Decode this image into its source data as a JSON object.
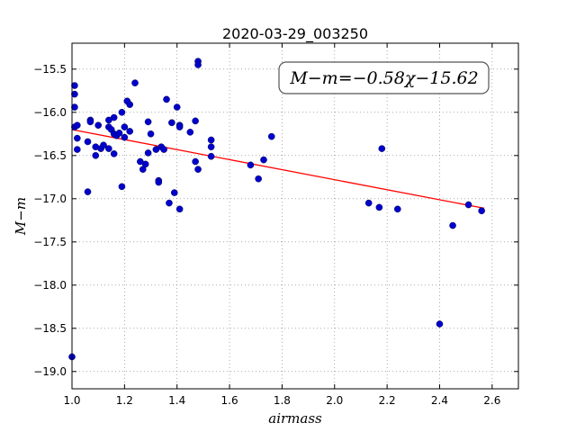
{
  "chart_data": {
    "type": "scatter",
    "title": "2020-03-29_003250",
    "xlabel": "airmass",
    "ylabel": "M−m",
    "annotation": "M−m=−0.58χ−15.62",
    "xlim": [
      1.0,
      2.7
    ],
    "ylim": [
      -19.2,
      -15.2
    ],
    "xticks": [
      1.0,
      1.2,
      1.4,
      1.6,
      1.8,
      2.0,
      2.2,
      2.4,
      2.6
    ],
    "xtick_labels": [
      "1.0",
      "1.2",
      "1.4",
      "1.6",
      "1.8",
      "2.0",
      "2.2",
      "2.4",
      "2.6"
    ],
    "yticks": [
      -15.5,
      -16.0,
      -16.5,
      -17.0,
      -17.5,
      -18.0,
      -18.5,
      -19.0
    ],
    "ytick_labels": [
      "−15.5",
      "−16.0",
      "−16.5",
      "−17.0",
      "−17.5",
      "−18.0",
      "−18.5",
      "−19.0"
    ],
    "grid": true,
    "point_color": "#0000cc",
    "fit_color": "#ff0000",
    "fit": {
      "slope": -0.58,
      "intercept": -15.62,
      "x_range": [
        1.0,
        2.57
      ]
    },
    "points": [
      [
        1.0,
        -18.83
      ],
      [
        1.01,
        -15.69
      ],
      [
        1.01,
        -15.79
      ],
      [
        1.01,
        -15.94
      ],
      [
        1.01,
        -16.17
      ],
      [
        1.02,
        -16.15
      ],
      [
        1.02,
        -16.3
      ],
      [
        1.02,
        -16.43
      ],
      [
        1.06,
        -16.34
      ],
      [
        1.06,
        -16.92
      ],
      [
        1.07,
        -16.09
      ],
      [
        1.07,
        -16.11
      ],
      [
        1.09,
        -16.4
      ],
      [
        1.09,
        -16.5
      ],
      [
        1.1,
        -16.15
      ],
      [
        1.11,
        -16.42
      ],
      [
        1.12,
        -16.38
      ],
      [
        1.14,
        -16.09
      ],
      [
        1.14,
        -16.17
      ],
      [
        1.14,
        -16.42
      ],
      [
        1.15,
        -16.2
      ],
      [
        1.16,
        -16.06
      ],
      [
        1.16,
        -16.25
      ],
      [
        1.16,
        -16.48
      ],
      [
        1.17,
        -16.27
      ],
      [
        1.18,
        -16.24
      ],
      [
        1.19,
        -16.0
      ],
      [
        1.19,
        -16.86
      ],
      [
        1.2,
        -16.17
      ],
      [
        1.2,
        -16.29
      ],
      [
        1.21,
        -15.87
      ],
      [
        1.22,
        -15.91
      ],
      [
        1.22,
        -16.22
      ],
      [
        1.24,
        -15.66
      ],
      [
        1.26,
        -16.57
      ],
      [
        1.27,
        -16.66
      ],
      [
        1.28,
        -16.6
      ],
      [
        1.29,
        -16.11
      ],
      [
        1.29,
        -16.47
      ],
      [
        1.3,
        -16.25
      ],
      [
        1.32,
        -16.43
      ],
      [
        1.33,
        -16.79
      ],
      [
        1.33,
        -16.81
      ],
      [
        1.34,
        -16.4
      ],
      [
        1.35,
        -16.43
      ],
      [
        1.36,
        -15.85
      ],
      [
        1.37,
        -17.05
      ],
      [
        1.38,
        -16.12
      ],
      [
        1.39,
        -16.93
      ],
      [
        1.4,
        -15.94
      ],
      [
        1.41,
        -16.15
      ],
      [
        1.41,
        -16.17
      ],
      [
        1.41,
        -17.12
      ],
      [
        1.45,
        -16.23
      ],
      [
        1.47,
        -16.57
      ],
      [
        1.47,
        -16.1
      ],
      [
        1.48,
        -15.41
      ],
      [
        1.48,
        -15.45
      ],
      [
        1.48,
        -16.66
      ],
      [
        1.53,
        -16.32
      ],
      [
        1.53,
        -16.4
      ],
      [
        1.53,
        -16.51
      ],
      [
        1.68,
        -16.61
      ],
      [
        1.71,
        -16.77
      ],
      [
        1.73,
        -16.55
      ],
      [
        1.76,
        -16.28
      ],
      [
        2.13,
        -17.05
      ],
      [
        2.17,
        -17.1
      ],
      [
        2.18,
        -16.42
      ],
      [
        2.24,
        -17.12
      ],
      [
        2.4,
        -18.45
      ],
      [
        2.45,
        -17.31
      ],
      [
        2.51,
        -17.07
      ],
      [
        2.56,
        -17.14
      ]
    ]
  }
}
